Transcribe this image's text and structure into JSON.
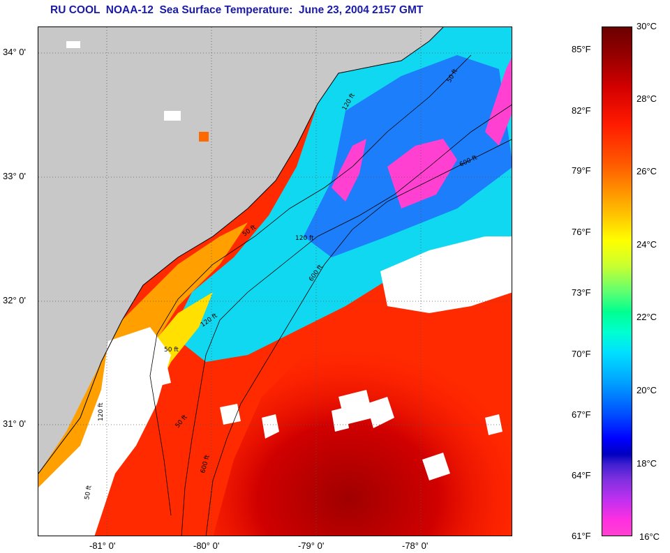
{
  "title": "RU COOL  NOAA-12  Sea Surface Temperature:  June 23, 2004 2157 GMT",
  "map": {
    "lat_labels": [
      "34° 0'",
      "33° 0'",
      "32° 0'",
      "31° 0'"
    ],
    "lon_labels": [
      "-81° 0'",
      "-80° 0'",
      "-79° 0'",
      "-78° 0'"
    ],
    "contour_labels": [
      "50 ft",
      "120 ft",
      "600 ft",
      "50 ft",
      "120 ft",
      "600 ft",
      "50 ft",
      "120 ft",
      "50 ft",
      "600 ft",
      "120 ft",
      "50 ft"
    ]
  },
  "colorbar": {
    "fahrenheit_labels": [
      "85°F",
      "82°F",
      "79°F",
      "76°F",
      "73°F",
      "70°F",
      "67°F",
      "64°F",
      "61°F"
    ],
    "celsius_labels": [
      "30°C",
      "28°C",
      "26°C",
      "24°C",
      "22°C",
      "20°C",
      "18°C",
      "16°C"
    ]
  },
  "colors": {
    "title": "#1a1aa8",
    "land": "#c8c8c8",
    "warm": "#e00000",
    "cool": "#00c8ff",
    "cold": "#ff40d0"
  }
}
